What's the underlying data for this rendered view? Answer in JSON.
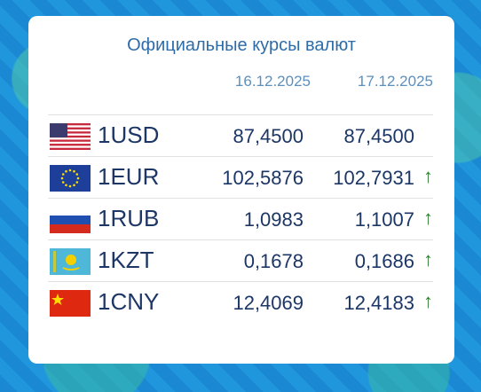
{
  "widget": {
    "title": "Официальные курсы валют",
    "dates": [
      "16.12.2025",
      "17.12.2025"
    ],
    "rows": [
      {
        "code": "1USD",
        "rates": [
          "87,4500",
          "87,4500"
        ]
      },
      {
        "code": "1EUR",
        "rates": [
          "102,5876",
          "102,7931"
        ],
        "trend": "↑"
      },
      {
        "code": "1RUB",
        "rates": [
          "1,0983",
          "1,1007"
        ],
        "trend": "↑"
      },
      {
        "code": "1KZT",
        "rates": [
          "0,1678",
          "0,1686"
        ],
        "trend": "↑"
      },
      {
        "code": "1CNY",
        "rates": [
          "12,4069",
          "12,4183"
        ],
        "trend": "↑"
      }
    ]
  }
}
